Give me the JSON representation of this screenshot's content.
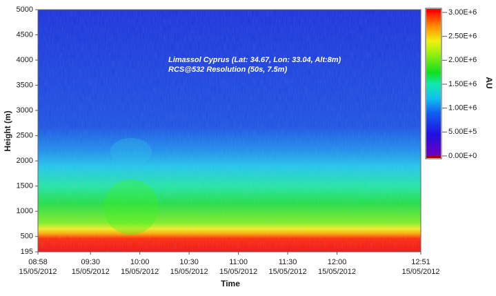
{
  "chart_data": {
    "type": "heatmap",
    "annotations": [
      "Limassol Cyprus (Lat: 34.67, Lon: 33.04, Alt:8m)",
      "RCS@532 Resolution (50s, 7.5m)"
    ],
    "xlabel": "Time",
    "ylabel": "Height (m)",
    "ylim": [
      195,
      5000
    ],
    "yticks": [
      195,
      500,
      1000,
      1500,
      2000,
      2500,
      3000,
      3500,
      4000,
      4500,
      5000
    ],
    "xlim": [
      "2012-05-15T08:58",
      "2012-05-15T12:51"
    ],
    "xticks": [
      {
        "value": "2012-05-15T08:58",
        "label": [
          "08:58",
          "15/05/2012"
        ]
      },
      {
        "value": "2012-05-15T09:30",
        "label": [
          "09:30",
          "15/05/2012"
        ]
      },
      {
        "value": "2012-05-15T10:00",
        "label": [
          "10:00",
          "15/05/2012"
        ]
      },
      {
        "value": "2012-05-15T10:30",
        "label": [
          "10:30",
          "15/05/2012"
        ]
      },
      {
        "value": "2012-05-15T11:00",
        "label": [
          "11:00",
          "15/05/2012"
        ]
      },
      {
        "value": "2012-05-15T11:30",
        "label": [
          "11:30",
          "15/05/2012"
        ]
      },
      {
        "value": "2012-05-15T12:00",
        "label": [
          "12:00",
          "15/05/2012"
        ]
      },
      {
        "value": "2012-05-15T12:51",
        "label": [
          "12:51",
          "15/05/2012"
        ]
      }
    ],
    "colorbar": {
      "label": "AU",
      "zlim": [
        0,
        3000000
      ],
      "ticks": [
        {
          "value": 0,
          "label": "0.00E+0"
        },
        {
          "value": 500000,
          "label": "5.00E+5"
        },
        {
          "value": 1000000,
          "label": "1.00E+6"
        },
        {
          "value": 1500000,
          "label": "1.50E+6"
        },
        {
          "value": 2000000,
          "label": "2.00E+6"
        },
        {
          "value": 2500000,
          "label": "2.50E+6"
        },
        {
          "value": 3000000,
          "label": "3.00E+6"
        }
      ]
    }
  }
}
